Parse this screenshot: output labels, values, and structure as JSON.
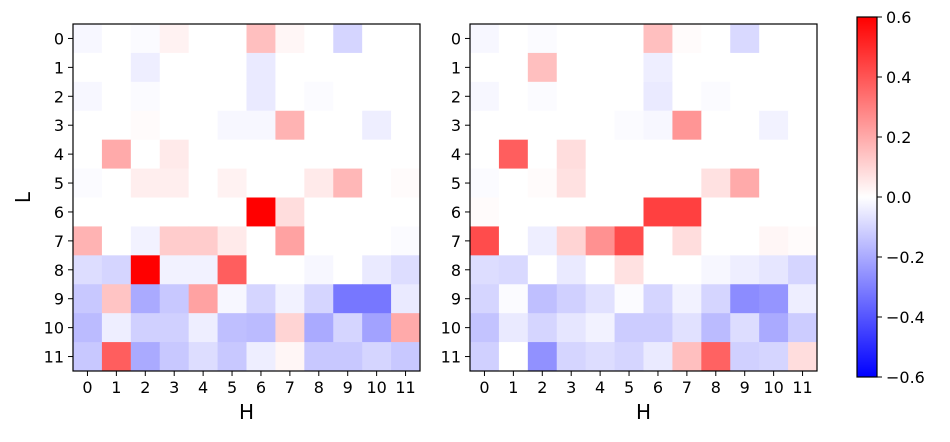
{
  "chart_data": [
    {
      "type": "heatmap",
      "title": "",
      "xlabel": "H",
      "ylabel": "L",
      "x_ticks": [
        "0",
        "1",
        "2",
        "3",
        "4",
        "5",
        "6",
        "7",
        "8",
        "9",
        "10",
        "11"
      ],
      "y_ticks": [
        "0",
        "1",
        "2",
        "3",
        "4",
        "5",
        "6",
        "7",
        "8",
        "9",
        "10",
        "11"
      ],
      "colormap": "bwr",
      "vmin": -0.6,
      "vmax": 0.6,
      "values": [
        [
          -0.02,
          0.0,
          -0.01,
          0.03,
          0.0,
          0.0,
          0.15,
          0.02,
          0.0,
          -0.1,
          0.0,
          0.0
        ],
        [
          0.0,
          0.0,
          -0.04,
          0.0,
          0.0,
          0.0,
          -0.05,
          0.0,
          0.0,
          0.0,
          0.0,
          0.0
        ],
        [
          -0.02,
          0.0,
          -0.01,
          0.0,
          0.0,
          0.0,
          -0.05,
          0.0,
          -0.01,
          0.0,
          0.0,
          0.0
        ],
        [
          0.0,
          0.0,
          0.01,
          0.0,
          0.0,
          -0.02,
          -0.02,
          0.18,
          0.0,
          0.0,
          -0.04,
          0.0
        ],
        [
          0.0,
          0.2,
          0.0,
          0.05,
          0.0,
          0.0,
          0.0,
          0.0,
          0.0,
          0.0,
          0.0,
          0.0
        ],
        [
          -0.01,
          0.0,
          0.04,
          0.04,
          0.0,
          0.03,
          0.0,
          0.0,
          0.05,
          0.17,
          0.0,
          0.01
        ],
        [
          0.0,
          0.0,
          0.0,
          0.0,
          0.0,
          0.0,
          0.6,
          0.08,
          0.0,
          0.0,
          0.0,
          0.0
        ],
        [
          0.18,
          0.0,
          -0.03,
          0.12,
          0.12,
          0.05,
          0.0,
          0.22,
          0.0,
          0.0,
          0.0,
          -0.01
        ],
        [
          -0.08,
          -0.1,
          0.6,
          -0.03,
          -0.03,
          0.38,
          0.0,
          0.0,
          -0.02,
          0.0,
          -0.05,
          -0.08
        ],
        [
          -0.13,
          0.14,
          -0.2,
          -0.13,
          0.22,
          -0.02,
          -0.1,
          -0.03,
          -0.1,
          -0.32,
          -0.32,
          -0.05
        ],
        [
          -0.16,
          -0.04,
          -0.11,
          -0.11,
          -0.04,
          -0.15,
          -0.16,
          0.1,
          -0.2,
          -0.1,
          -0.22,
          0.2
        ],
        [
          -0.13,
          0.38,
          -0.2,
          -0.13,
          -0.08,
          -0.13,
          -0.04,
          0.02,
          -0.13,
          -0.13,
          -0.1,
          -0.13
        ]
      ]
    },
    {
      "type": "heatmap",
      "title": "",
      "xlabel": "H",
      "ylabel": "",
      "x_ticks": [
        "0",
        "1",
        "2",
        "3",
        "4",
        "5",
        "6",
        "7",
        "8",
        "9",
        "10",
        "11"
      ],
      "y_ticks": [
        "0",
        "1",
        "2",
        "3",
        "4",
        "5",
        "6",
        "7",
        "8",
        "9",
        "10",
        "11"
      ],
      "colormap": "bwr",
      "vmin": -0.6,
      "vmax": 0.6,
      "values": [
        [
          -0.02,
          0.0,
          -0.01,
          0.0,
          0.0,
          0.0,
          0.15,
          0.01,
          0.0,
          -0.09,
          0.0,
          0.0
        ],
        [
          0.0,
          0.0,
          0.15,
          0.0,
          0.0,
          0.0,
          -0.04,
          0.0,
          0.0,
          0.0,
          0.0,
          0.0
        ],
        [
          -0.02,
          0.0,
          -0.01,
          0.0,
          0.0,
          0.0,
          -0.05,
          0.0,
          -0.01,
          0.0,
          0.0,
          0.0
        ],
        [
          0.0,
          0.0,
          0.0,
          0.0,
          0.0,
          -0.01,
          -0.02,
          0.25,
          0.0,
          0.0,
          -0.03,
          0.0
        ],
        [
          0.0,
          0.38,
          0.0,
          0.08,
          0.0,
          0.0,
          0.0,
          0.0,
          0.0,
          0.0,
          0.0,
          0.0
        ],
        [
          -0.01,
          0.0,
          0.01,
          0.07,
          0.0,
          0.0,
          0.0,
          0.0,
          0.07,
          0.2,
          0.0,
          0.0
        ],
        [
          0.01,
          0.0,
          0.0,
          0.0,
          0.0,
          0.0,
          0.45,
          0.45,
          0.0,
          0.0,
          0.0,
          0.0
        ],
        [
          0.42,
          0.0,
          -0.04,
          0.1,
          0.26,
          0.42,
          0.0,
          0.08,
          0.0,
          0.0,
          0.02,
          0.01
        ],
        [
          -0.08,
          -0.09,
          0.0,
          -0.05,
          0.0,
          0.07,
          0.0,
          0.0,
          -0.02,
          -0.04,
          -0.06,
          -0.1
        ],
        [
          -0.1,
          -0.01,
          -0.15,
          -0.11,
          -0.07,
          -0.01,
          -0.1,
          -0.03,
          -0.1,
          -0.27,
          -0.25,
          -0.04
        ],
        [
          -0.14,
          -0.05,
          -0.1,
          -0.06,
          -0.03,
          -0.12,
          -0.12,
          -0.07,
          -0.16,
          -0.08,
          -0.2,
          -0.12
        ],
        [
          -0.11,
          0.0,
          -0.26,
          -0.1,
          -0.08,
          -0.1,
          -0.05,
          0.15,
          0.37,
          -0.11,
          -0.1,
          0.08
        ]
      ]
    }
  ],
  "colorbar": {
    "ticks": [
      "0.6",
      "0.4",
      "0.2",
      "0.0",
      "−0.2",
      "−0.4",
      "−0.6"
    ],
    "tick_values": [
      0.6,
      0.4,
      0.2,
      0.0,
      -0.2,
      -0.4,
      -0.6
    ],
    "min": -0.6,
    "max": 0.6,
    "color_low": "#0000ff",
    "color_mid": "#ffffff",
    "color_high": "#ff0000"
  }
}
